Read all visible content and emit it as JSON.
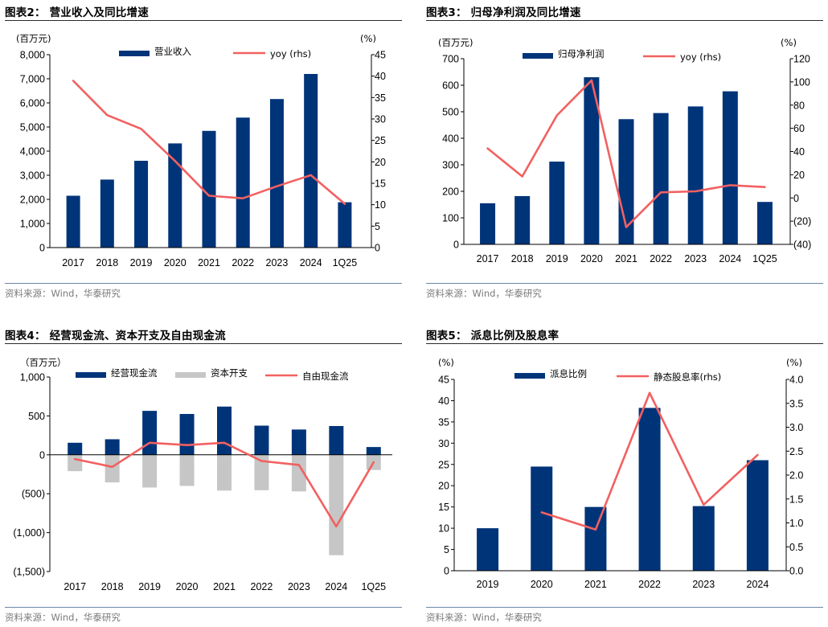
{
  "panels": [
    {
      "title": "图表2：  营业收入及同比增速",
      "source": "资料来源：Wind，华泰研究"
    },
    {
      "title": "图表3：  归母净利润及同比增速",
      "source": "资料来源：Wind，华泰研究"
    },
    {
      "title": "图表4：  经营现金流、资本开支及自由现金流",
      "source": "资料来源：Wind，华泰研究"
    },
    {
      "title": "图表5：  派息比例及股息率",
      "source": "资料来源：Wind，华泰研究"
    }
  ],
  "colors": {
    "bar_blue": "#003479",
    "bar_gray": "#c6c6c6",
    "line_red": "#f26060"
  },
  "chart_data": [
    {
      "type": "bar",
      "title": "营业收入及同比增速",
      "left_unit": "(百万元)",
      "right_unit": "(%)",
      "categories": [
        "2017",
        "2018",
        "2019",
        "2020",
        "2021",
        "2022",
        "2023",
        "2024",
        "1Q25"
      ],
      "series": [
        {
          "name": "营业收入",
          "kind": "bar",
          "axis": "left",
          "values": [
            2150,
            2820,
            3600,
            4320,
            4840,
            5390,
            6160,
            7200,
            1880
          ]
        },
        {
          "name": "yoy (rhs)",
          "kind": "line",
          "axis": "right",
          "values": [
            38.9,
            30.9,
            27.7,
            20.2,
            12.1,
            11.5,
            14.3,
            16.9,
            10.2
          ]
        }
      ],
      "ylim_left": [
        0,
        8000
      ],
      "yticks_left": [
        0,
        1000,
        2000,
        3000,
        4000,
        5000,
        6000,
        7000,
        8000
      ],
      "ytick_labels_left": [
        "0",
        "1,000",
        "2,000",
        "3,000",
        "4,000",
        "5,000",
        "6,000",
        "7,000",
        "8,000"
      ],
      "ylim_right": [
        0,
        45
      ],
      "yticks_right": [
        0,
        5,
        10,
        15,
        20,
        25,
        30,
        35,
        40,
        45
      ],
      "ytick_labels_right": [
        "0",
        "5",
        "10",
        "15",
        "20",
        "25",
        "30",
        "35",
        "40",
        "45"
      ]
    },
    {
      "type": "bar",
      "title": "归母净利润及同比增速",
      "left_unit": "(百万元)",
      "right_unit": "(%)",
      "categories": [
        "2017",
        "2018",
        "2019",
        "2020",
        "2021",
        "2022",
        "2023",
        "2024",
        "1Q25"
      ],
      "series": [
        {
          "name": "归母净利润",
          "kind": "bar",
          "axis": "left",
          "values": [
            155,
            182,
            312,
            630,
            472,
            495,
            520,
            577,
            160
          ]
        },
        {
          "name": "yoy (rhs)",
          "kind": "line",
          "axis": "right",
          "values": [
            42.7,
            18.5,
            71.2,
            101.4,
            -25.2,
            4.8,
            5.7,
            11.0,
            9.4
          ]
        }
      ],
      "ylim_left": [
        0,
        700
      ],
      "yticks_left": [
        0,
        100,
        200,
        300,
        400,
        500,
        600,
        700
      ],
      "ytick_labels_left": [
        "0",
        "100",
        "200",
        "300",
        "400",
        "500",
        "600",
        "700"
      ],
      "ylim_right": [
        -40,
        120
      ],
      "yticks_right": [
        -40,
        -20,
        0,
        20,
        40,
        60,
        80,
        100,
        120
      ],
      "ytick_labels_right": [
        "(40)",
        "(20)",
        "0",
        "20",
        "40",
        "60",
        "80",
        "100",
        "120"
      ]
    },
    {
      "type": "bar",
      "title": "经营现金流、资本开支及自由现金流",
      "left_unit": "（百万元）",
      "categories": [
        "2017",
        "2018",
        "2019",
        "2020",
        "2021",
        "2022",
        "2023",
        "2024",
        "1Q25"
      ],
      "series": [
        {
          "name": "经营现金流",
          "kind": "bar",
          "axis": "left",
          "values": [
            155,
            200,
            565,
            525,
            620,
            375,
            325,
            370,
            100
          ]
        },
        {
          "name": "资本开支",
          "kind": "bar",
          "axis": "left",
          "values": [
            -210,
            -355,
            -420,
            -400,
            -460,
            -455,
            -470,
            -1290,
            -195
          ]
        },
        {
          "name": "自由现金流",
          "kind": "line",
          "axis": "left",
          "values": [
            -55,
            -155,
            155,
            125,
            155,
            -80,
            -130,
            -920,
            -95
          ]
        }
      ],
      "ylim_left": [
        -1500,
        1000
      ],
      "yticks_left": [
        -1500,
        -1000,
        -500,
        0,
        500,
        1000
      ],
      "ytick_labels_left": [
        "(1,500)",
        "(1,000)",
        "(500)",
        "0",
        "500",
        "1,000"
      ]
    },
    {
      "type": "bar",
      "title": "派息比例及股息率",
      "left_unit": "(%)",
      "right_unit": "(%)",
      "categories": [
        "2019",
        "2020",
        "2021",
        "2022",
        "2023",
        "2024"
      ],
      "series": [
        {
          "name": "派息比例",
          "kind": "bar",
          "axis": "left",
          "values": [
            10.0,
            24.5,
            15.0,
            38.3,
            15.2,
            26.0
          ]
        },
        {
          "name": "静态股息率(rhs)",
          "kind": "line",
          "axis": "right",
          "values": [
            null,
            1.22,
            0.86,
            3.72,
            1.38,
            2.42
          ]
        }
      ],
      "ylim_left": [
        0,
        45
      ],
      "yticks_left": [
        0,
        5,
        10,
        15,
        20,
        25,
        30,
        35,
        40,
        45
      ],
      "ytick_labels_left": [
        "0",
        "5",
        "10",
        "15",
        "20",
        "25",
        "30",
        "35",
        "40",
        "45"
      ],
      "ylim_right": [
        0,
        4
      ],
      "yticks_right": [
        0,
        0.5,
        1,
        1.5,
        2,
        2.5,
        3,
        3.5,
        4
      ],
      "ytick_labels_right": [
        "0.0",
        "0.5",
        "1.0",
        "1.5",
        "2.0",
        "2.5",
        "3.0",
        "3.5",
        "4.0"
      ]
    }
  ]
}
